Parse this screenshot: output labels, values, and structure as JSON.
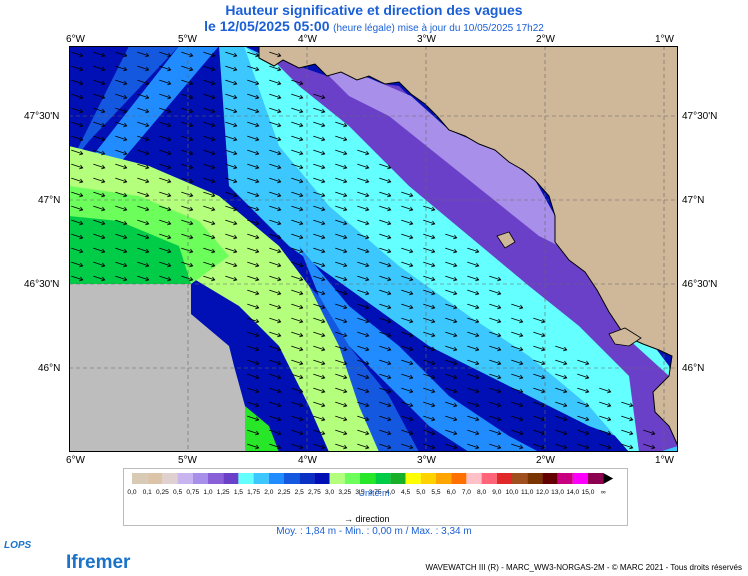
{
  "title": "Hauteur significative et direction des vagues",
  "subtitle": {
    "date": "le 12/05/2025 05:00",
    "note": "(heure légale) mise à jour du 10/05/2025 17h22"
  },
  "axes": {
    "lon_labels": [
      "6°W",
      "5°W",
      "4°W",
      "3°W",
      "2°W",
      "1°W"
    ],
    "lat_labels": [
      "47°30'N",
      "47°N",
      "46°30'N",
      "46°N"
    ]
  },
  "legend": {
    "values": [
      "0,0",
      "0,1",
      "0,25",
      "0,5",
      "0,75",
      "1,0",
      "1,25",
      "1,5",
      "1,75",
      "2,0",
      "2,25",
      "2,5",
      "2,75",
      "3,0",
      "3,25",
      "3,5",
      "3,75",
      "4,0",
      "4,5",
      "5,0",
      "5,5",
      "6,0",
      "7,0",
      "8,0",
      "9,0",
      "10,0",
      "11,0",
      "12,0",
      "13,0",
      "14,0",
      "15,0",
      "∞"
    ],
    "colors": [
      "#d8cab4",
      "#dcc4a8",
      "#e0d0d0",
      "#c8b4ee",
      "#a890ea",
      "#8a60d8",
      "#6a40c8",
      "#64ffff",
      "#3cc8ff",
      "#208cff",
      "#1458e0",
      "#0a30c4",
      "#0010b4",
      "#b4ff7c",
      "#6cff5c",
      "#28e628",
      "#00cc48",
      "#18b028",
      "#ffff00",
      "#ffd200",
      "#ffa500",
      "#ff7000",
      "#ffc0c8",
      "#ff6478",
      "#e02828",
      "#a0501e",
      "#7a3400",
      "#640000",
      "#c80080",
      "#ff00ff",
      "#8c0050"
    ],
    "unit": "Unité:m",
    "direction_label": "direction"
  },
  "stats": "Moy. : 1,84 m  -  Min. : 0,00 m / Max. : 3,34 m",
  "copyright": "WAVEWATCH III (R) - MARC_WW3-NORGAS-2M - © MARC 2021 - Tous droits réservés",
  "logos": {
    "lops": "LOPS",
    "ifremer": "Ifremer"
  }
}
